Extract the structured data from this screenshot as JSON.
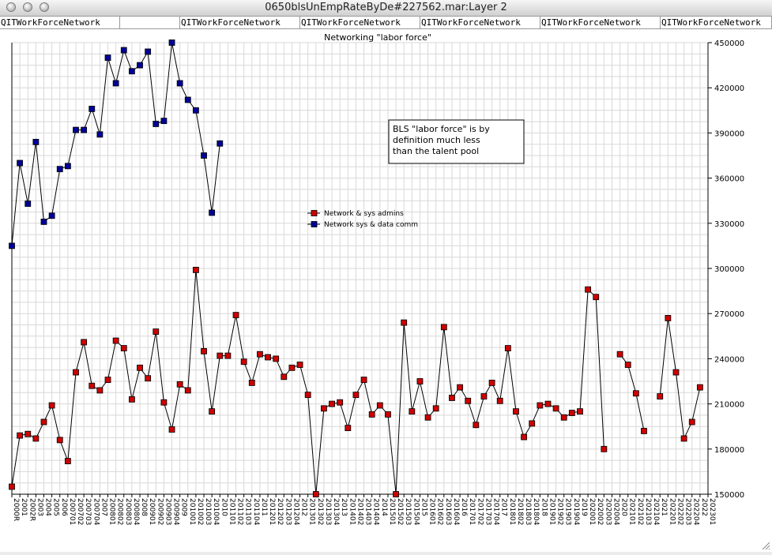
{
  "window": {
    "title": "0650blsUnEmpRateByDe#227562.mar:Layer 2"
  },
  "tabs": [
    "QITWorkForceNetwork",
    "QITWorkForceNetwork",
    "QITWorkForceNetwork",
    "QITWorkForceNetwork",
    "QITWorkForceNetwork",
    "QITWorkForceNetwork"
  ],
  "chart_data": {
    "type": "line",
    "title": "Networking \"labor force\"",
    "xlabel": "",
    "ylabel": "",
    "ylim": [
      150000,
      450000
    ],
    "yticks": [
      150000,
      180000,
      210000,
      240000,
      270000,
      300000,
      330000,
      360000,
      390000,
      420000,
      450000
    ],
    "y_axis_side": "right",
    "grid": true,
    "legend_position": "center",
    "categories": [
      "2000R",
      "2001",
      "2002R",
      "2003",
      "2004",
      "2005",
      "2006",
      "200701",
      "200702",
      "200703",
      "200704",
      "2007",
      "200801",
      "200802",
      "200803",
      "200804",
      "2008",
      "200901",
      "200902",
      "200903",
      "200904",
      "2009",
      "201001",
      "201002",
      "201003",
      "201004",
      "2010",
      "201101",
      "201102",
      "201103",
      "201104",
      "2011",
      "201201",
      "201202",
      "201203",
      "201204",
      "2012",
      "201301",
      "201302",
      "201303",
      "201304",
      "2013",
      "201401",
      "201402",
      "201403",
      "201404",
      "2014",
      "201501",
      "201502",
      "201503",
      "201504",
      "2015",
      "201601",
      "201602",
      "201603",
      "201604",
      "2016",
      "201701",
      "201702",
      "201703",
      "201704",
      "2017",
      "201801",
      "201802",
      "201803",
      "201804",
      "2018",
      "201901",
      "201902",
      "201903",
      "201904",
      "2019",
      "202001",
      "202002",
      "202003",
      "202004",
      "2020",
      "202101",
      "202102",
      "202103",
      "202104",
      "2021",
      "202201",
      "202202",
      "202203",
      "202204",
      "2022",
      "202301"
    ],
    "series": [
      {
        "name": "Network & sys admins",
        "color": "#cc0000",
        "values": [
          155000,
          189000,
          190000,
          187000,
          198000,
          209000,
          186000,
          172000,
          231000,
          251000,
          222000,
          219000,
          226000,
          252000,
          247000,
          213000,
          234000,
          227000,
          258000,
          211000,
          193000,
          223000,
          219000,
          299000,
          245000,
          205000,
          242000,
          242000,
          269000,
          238000,
          224000,
          243000,
          241000,
          240000,
          228000,
          234000,
          236000,
          216000,
          150000,
          207000,
          210000,
          211000,
          194000,
          216000,
          226000,
          203000,
          209000,
          203000,
          150000,
          264000,
          205000,
          225000,
          201000,
          207000,
          261000,
          214000,
          221000,
          212000,
          196000,
          215000,
          224000,
          212000,
          247000,
          205000,
          188000,
          197000,
          209000,
          210000,
          207000,
          201000,
          204000,
          205000,
          286000,
          281000,
          180000,
          null,
          243000,
          236000,
          217000,
          192000,
          null,
          215000,
          267000,
          231000,
          187000,
          198000,
          221000,
          null
        ]
      },
      {
        "name": "Network sys & data comm",
        "color": "#000099",
        "values": [
          315000,
          370000,
          343000,
          384000,
          331000,
          335000,
          366000,
          368000,
          392000,
          392000,
          406000,
          389000,
          440000,
          423000,
          445000,
          431000,
          435000,
          444000,
          396000,
          398000,
          450000,
          423000,
          412000,
          405000,
          375000,
          337000,
          383000,
          null,
          null,
          null,
          null,
          null,
          null,
          null,
          null,
          null,
          null,
          null,
          null,
          null,
          null,
          null,
          null,
          null,
          null,
          null,
          null,
          null,
          null,
          null,
          null,
          null,
          null,
          null,
          null,
          null,
          null,
          null,
          null,
          null,
          null,
          null,
          null,
          null,
          null,
          null,
          null,
          null,
          null,
          null,
          null,
          null,
          null,
          null,
          null,
          null,
          null,
          null,
          null,
          null,
          null,
          null,
          null,
          null,
          null,
          null,
          null,
          null
        ]
      }
    ],
    "annotations": [
      "BLS \"labor force\" is by definition much less than the talent pool"
    ]
  }
}
